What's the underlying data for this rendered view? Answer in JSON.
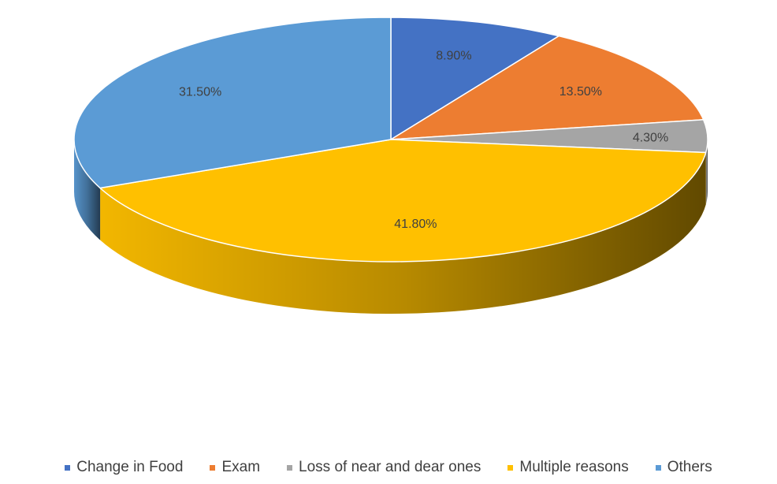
{
  "chart_data": {
    "type": "pie",
    "title": "",
    "categories": [
      "Change in Food",
      "Exam",
      "Loss of near and dear ones",
      "Multiple reasons",
      "Others"
    ],
    "values": [
      8.9,
      13.5,
      4.3,
      41.8,
      31.5
    ],
    "labels": [
      "8.90%",
      "13.50%",
      "4.30%",
      "41.80%",
      "31.50%"
    ],
    "colors": [
      "#4472C4",
      "#ED7D31",
      "#A5A5A5",
      "#FFC000",
      "#5B9BD5"
    ],
    "style": "3d",
    "start": "12 o'clock, clockwise",
    "legend_position": "bottom"
  },
  "legend": {
    "items": [
      {
        "label": "Change in Food",
        "color": "#4472C4"
      },
      {
        "label": "Exam",
        "color": "#ED7D31"
      },
      {
        "label": "Loss of near and dear ones",
        "color": "#A5A5A5"
      },
      {
        "label": "Multiple reasons",
        "color": "#FFC000"
      },
      {
        "label": "Others",
        "color": "#5B9BD5"
      }
    ]
  }
}
